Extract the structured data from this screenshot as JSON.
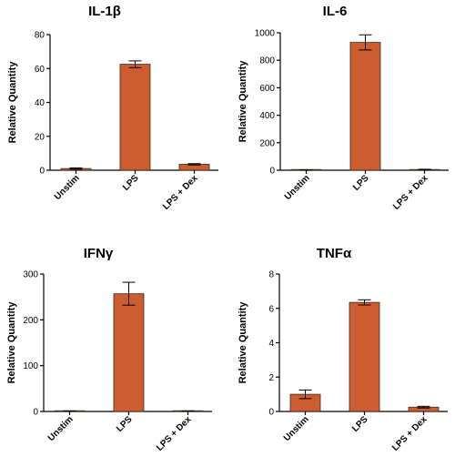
{
  "chart_data": [
    {
      "type": "bar",
      "title": "IL-1β",
      "ylabel": "Relative Quantity",
      "categories": [
        "Unstim",
        "LPS",
        "LPS + Dex"
      ],
      "values": [
        1,
        62.5,
        3.5
      ],
      "errors": [
        0.4,
        2,
        0.4
      ],
      "ylim": [
        0,
        80
      ],
      "yticks": [
        0,
        20,
        40,
        60,
        80
      ],
      "ytick_labels": [
        "0",
        "20",
        "40",
        "60",
        "80"
      ],
      "bar_color": "#cd5c2e"
    },
    {
      "type": "bar",
      "title": "IL-6",
      "ylabel": "Relative Quantity",
      "categories": [
        "Unstim",
        "LPS",
        "LPS + Dex"
      ],
      "values": [
        1,
        930,
        5
      ],
      "errors": [
        0.5,
        55,
        2
      ],
      "ylim": [
        0,
        1000
      ],
      "yticks": [
        0,
        200,
        400,
        600,
        800,
        1000
      ],
      "ytick_labels": [
        "0",
        "200",
        "400",
        "600",
        "800",
        "1000"
      ],
      "bar_color": "#cd5c2e"
    },
    {
      "type": "bar",
      "title": "IFNγ",
      "ylabel": "Relative Quantity",
      "categories": [
        "Unstim",
        "LPS",
        "LPS + Dex"
      ],
      "values": [
        1,
        257,
        1
      ],
      "errors": [
        0.3,
        25,
        0.3
      ],
      "ylim": [
        0,
        300
      ],
      "yticks": [
        0,
        100,
        200,
        300
      ],
      "ytick_labels": [
        "0",
        "100",
        "200",
        "300"
      ],
      "bar_color": "#cd5c2e"
    },
    {
      "type": "bar",
      "title": "TNFα",
      "ylabel": "Relative Quantity",
      "categories": [
        "Unstim",
        "LPS",
        "LPS + Dex"
      ],
      "values": [
        1,
        6.35,
        0.25
      ],
      "errors": [
        0.25,
        0.15,
        0.05
      ],
      "ylim": [
        0,
        8
      ],
      "yticks": [
        0,
        2,
        4,
        6,
        8
      ],
      "ytick_labels": [
        "0",
        "2",
        "4",
        "6",
        "8"
      ],
      "bar_color": "#cd5c2e"
    }
  ]
}
